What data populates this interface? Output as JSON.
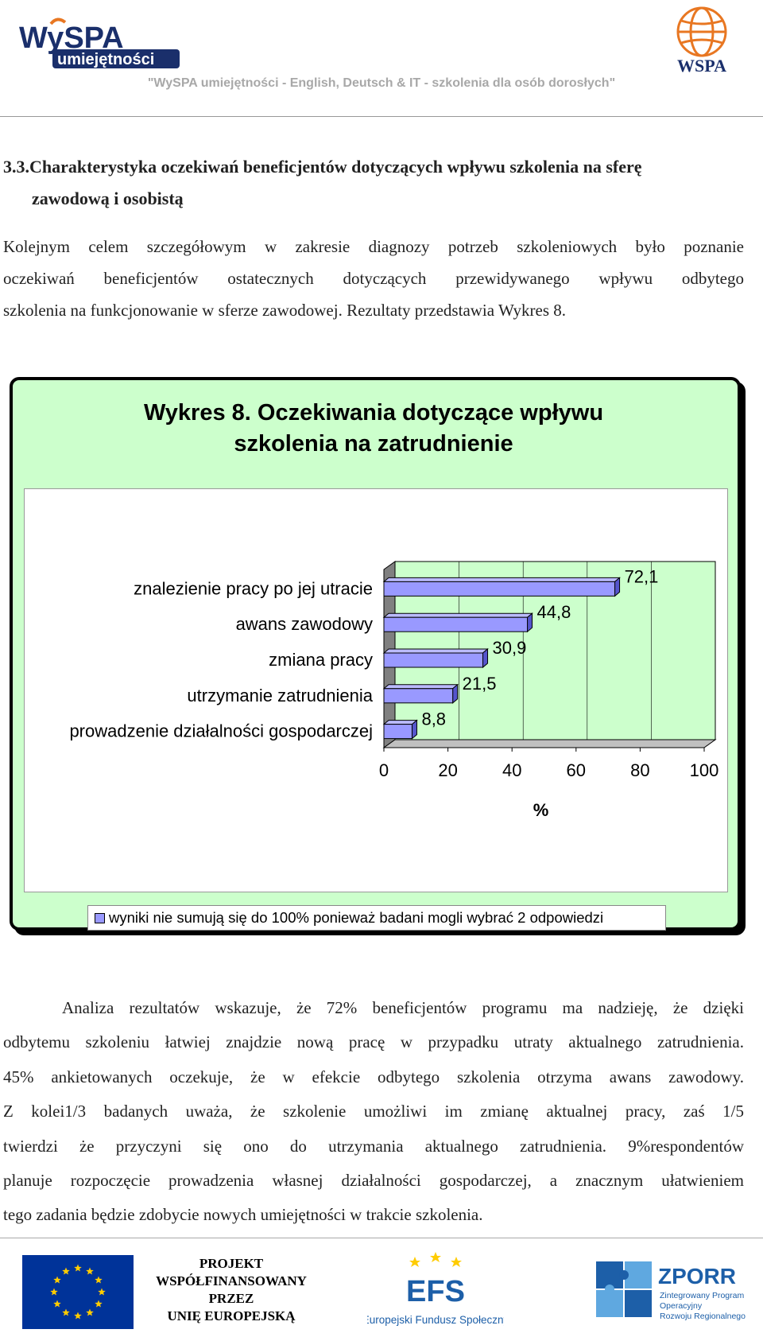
{
  "header": {
    "logo_left_text": "WySPA umiejętności",
    "logo_right_text": "WSPA",
    "tagline": "\"WySPA umiejętności - English, Deutsch & IT - szkolenia dla osób dorosłych\""
  },
  "section": {
    "heading_line1": "3.3.Charakterystyka oczekiwań beneficjentów dotyczących wpływu szkolenia na sferę",
    "heading_line2": "zawodową i osobistą",
    "intro_lines": [
      "Kolejnym celem szczegółowym w zakresie diagnozy potrzeb szkoleniowych było poznanie",
      "oczekiwań beneficjentów ostatecznych dotyczących przewidywanego wpływu odbytego",
      "szkolenia na funkcjonowanie w sferze zawodowej. Rezultaty przedstawia Wykres 8."
    ]
  },
  "chart_data": {
    "type": "bar",
    "orientation": "horizontal",
    "title": "Wykres 8. Oczekiwania dotyczące wpływu szkolenia na zatrudnienie",
    "title_line1": "Wykres 8. Oczekiwania dotyczące wpływu",
    "title_line2": "szkolenia na zatrudnienie",
    "categories": [
      "znalezienie pracy po jej utracie",
      "awans zawodowy",
      "zmiana pracy",
      "utrzymanie zatrudnienia",
      "prowadzenie działalności gospodarczej"
    ],
    "values": [
      72.1,
      44.8,
      30.9,
      21.5,
      8.8
    ],
    "data_labels": [
      "72,1",
      "44,8",
      "30,9",
      "21,5",
      "8,8"
    ],
    "xlabel": "%",
    "xlim": [
      0,
      100
    ],
    "x_ticks": [
      "0",
      "20",
      "40",
      "60",
      "80",
      "100"
    ],
    "grid": true,
    "bar_color": "#9999ff",
    "wall_color": "#ccffcc",
    "legend_position": "bottom",
    "legend_text": "wyniki nie sumują się do 100% ponieważ badani mogli wybrać 2 odpowiedzi"
  },
  "analysis_lines": [
    "Analiza rezultatów wskazuje, że 72% beneficjentów programu ma nadzieję, że dzięki",
    "odbytemu szkoleniu łatwiej znajdzie nową pracę w przypadku utraty aktualnego zatrudnienia.",
    "45% ankietowanych oczekuje, że w efekcie odbytego szkolenia otrzyma awans zawodowy.",
    "Z kolei1/3 badanych uważa, że szkolenie umożliwi im zmianę aktualnej pracy, zaś 1/5",
    "twierdzi że przyczyni się ono do utrzymania aktualnego zatrudnienia. 9%respondentów",
    "planuje rozpoczęcie prowadzenia własnej działalności gospodarczej, a znacznym ułatwieniem",
    "tego zadania będzie zdobycie nowych umiejętności w trakcie szkolenia."
  ],
  "footer": {
    "project_lines": [
      "PROJEKT",
      "WSPÓŁFINANSOWANY",
      "PRZEZ",
      "UNIĘ EUROPEJSKĄ"
    ],
    "efs_text": "EFS",
    "efs_caption": "Europejski Fundusz Społeczny",
    "zporr_text": "ZPORR",
    "zporr_caption_lines": [
      "Zintegrowany Program",
      "Operacyjny",
      "Rozwoju Regionalnego"
    ]
  },
  "colors": {
    "eu_blue": "#003399",
    "eu_gold": "#ffcc00",
    "wspa_orange": "#e87722",
    "wspa_navy": "#1a2f6b",
    "zporr_blue": "#1d5fa8"
  }
}
